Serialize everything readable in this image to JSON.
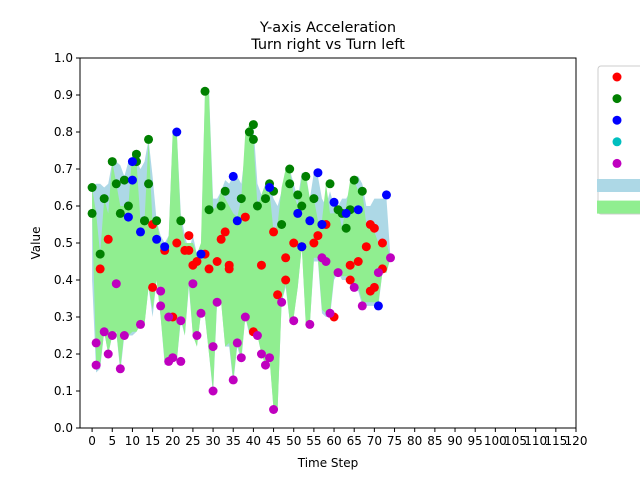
{
  "chart_data": {
    "type": "scatter",
    "title": "Y-axis Acceleration",
    "subtitle": "Turn right vs Turn left",
    "xlabel": "Time Step",
    "ylabel": "Value",
    "xlim": [
      -3,
      120
    ],
    "ylim": [
      0.0,
      1.0
    ],
    "xticks": [
      "0",
      "5",
      "10",
      "15",
      "20",
      "25",
      "30",
      "35",
      "40",
      "45",
      "50",
      "55",
      "60",
      "65",
      "70",
      "75",
      "80",
      "85",
      "90",
      "95",
      "100",
      "105",
      "110",
      "115",
      "120"
    ],
    "yticks": [
      "0.0",
      "0.1",
      "0.2",
      "0.3",
      "0.4",
      "0.5",
      "0.6",
      "0.7",
      "0.8",
      "0.9",
      "1.0"
    ],
    "grid": false,
    "legend_placement": "right",
    "legend_entries": [
      {
        "kind": "marker",
        "color": "#ff0000",
        "label": ""
      },
      {
        "kind": "marker",
        "color": "#008000",
        "label": ""
      },
      {
        "kind": "marker",
        "color": "#0000ff",
        "label": ""
      },
      {
        "kind": "marker",
        "color": "#00bfbf",
        "label": ""
      },
      {
        "kind": "marker",
        "color": "#bf00bf",
        "label": ""
      },
      {
        "kind": "patch",
        "color": "#add8e6",
        "label": ""
      },
      {
        "kind": "patch",
        "color": "#90ee90",
        "label": ""
      }
    ],
    "bands": [
      {
        "color": "#add8e6",
        "x": [
          0,
          1,
          2,
          3,
          4,
          5,
          6,
          7,
          8,
          9,
          10,
          11,
          12,
          13,
          14,
          15,
          16,
          17,
          18,
          19,
          20,
          21,
          22,
          23,
          24,
          25,
          26,
          27,
          28,
          29,
          30,
          31,
          32,
          33,
          34,
          35,
          36,
          37,
          38,
          39,
          40,
          41,
          42,
          43,
          44,
          45,
          46,
          47,
          48,
          49,
          50,
          51,
          52,
          53,
          54,
          55,
          56,
          57,
          58,
          59,
          60,
          61,
          62,
          63,
          64,
          65,
          66,
          67,
          68,
          69,
          70,
          71,
          72,
          73,
          74
        ],
        "upper": [
          0.65,
          0.66,
          0.66,
          0.65,
          0.66,
          0.72,
          0.72,
          0.71,
          0.68,
          0.72,
          0.72,
          0.72,
          0.7,
          0.72,
          0.78,
          0.68,
          0.56,
          0.52,
          0.5,
          0.52,
          0.8,
          0.8,
          0.58,
          0.52,
          0.48,
          0.52,
          0.47,
          0.48,
          0.91,
          0.91,
          0.62,
          0.62,
          0.64,
          0.67,
          0.66,
          0.68,
          0.68,
          0.66,
          0.75,
          0.82,
          0.82,
          0.66,
          0.63,
          0.66,
          0.66,
          0.62,
          0.6,
          0.64,
          0.7,
          0.7,
          0.66,
          0.62,
          0.69,
          0.69,
          0.62,
          0.69,
          0.68,
          0.62,
          0.6,
          0.64,
          0.6,
          0.6,
          0.62,
          0.62,
          0.64,
          0.68,
          0.68,
          0.66,
          0.6,
          0.6,
          0.62,
          0.62,
          0.62,
          0.62,
          0.46
        ],
        "lower": [
          0.4,
          0.15,
          0.16,
          0.26,
          0.2,
          0.25,
          0.26,
          0.15,
          0.25,
          0.25,
          0.25,
          0.26,
          0.28,
          0.28,
          0.38,
          0.3,
          0.4,
          0.3,
          0.17,
          0.18,
          0.19,
          0.18,
          0.29,
          0.25,
          0.38,
          0.25,
          0.22,
          0.31,
          0.3,
          0.2,
          0.09,
          0.34,
          0.34,
          0.22,
          0.22,
          0.12,
          0.22,
          0.18,
          0.3,
          0.25,
          0.26,
          0.25,
          0.2,
          0.17,
          0.19,
          0.05,
          0.05,
          0.34,
          0.38,
          0.29,
          0.3,
          0.38,
          0.49,
          0.28,
          0.28,
          0.45,
          0.45,
          0.31,
          0.3,
          0.3,
          0.4,
          0.42,
          0.4,
          0.4,
          0.4,
          0.37,
          0.37,
          0.33,
          0.33,
          0.33,
          0.33,
          0.33,
          0.42,
          0.42,
          0.46
        ]
      },
      {
        "color": "#90ee90",
        "x": [
          0,
          1,
          2,
          3,
          4,
          5,
          6,
          7,
          8,
          9,
          10,
          11,
          12,
          13,
          14,
          15,
          16,
          17,
          18,
          19,
          20,
          21,
          22,
          23,
          24,
          25,
          26,
          27,
          28,
          29,
          30,
          31,
          32,
          33,
          34,
          35,
          36,
          37,
          38,
          39,
          40,
          41,
          42,
          43,
          44,
          45,
          46,
          47,
          48,
          49,
          50,
          51,
          52,
          53,
          54,
          55,
          56,
          57,
          58,
          59,
          60,
          61,
          62,
          63,
          64,
          65,
          66,
          67,
          68,
          69,
          70,
          71,
          72,
          73,
          74
        ],
        "upper": [
          0.65,
          0.58,
          0.47,
          0.62,
          0.58,
          0.72,
          0.66,
          0.6,
          0.6,
          0.6,
          0.75,
          0.72,
          0.56,
          0.56,
          0.78,
          0.55,
          0.56,
          0.5,
          0.48,
          0.52,
          0.8,
          0.8,
          0.56,
          0.5,
          0.5,
          0.5,
          0.47,
          0.5,
          0.91,
          0.9,
          0.59,
          0.6,
          0.64,
          0.62,
          0.6,
          0.58,
          0.57,
          0.62,
          0.8,
          0.82,
          0.78,
          0.6,
          0.63,
          0.66,
          0.64,
          0.53,
          0.55,
          0.65,
          0.7,
          0.7,
          0.63,
          0.6,
          0.68,
          0.68,
          0.62,
          0.62,
          0.56,
          0.56,
          0.66,
          0.58,
          0.58,
          0.59,
          0.54,
          0.6,
          0.67,
          0.67,
          0.64,
          0.64,
          0.55,
          0.54,
          0.53,
          0.5,
          0.5,
          0.5,
          0.46
        ],
        "lower": [
          0.58,
          0.18,
          0.17,
          0.26,
          0.2,
          0.25,
          0.26,
          0.16,
          0.26,
          0.25,
          0.26,
          0.26,
          0.28,
          0.28,
          0.38,
          0.32,
          0.4,
          0.3,
          0.18,
          0.18,
          0.19,
          0.18,
          0.3,
          0.25,
          0.39,
          0.25,
          0.22,
          0.31,
          0.3,
          0.2,
          0.1,
          0.35,
          0.34,
          0.22,
          0.23,
          0.13,
          0.23,
          0.19,
          0.3,
          0.26,
          0.26,
          0.25,
          0.2,
          0.17,
          0.19,
          0.05,
          0.05,
          0.34,
          0.39,
          0.29,
          0.3,
          0.38,
          0.49,
          0.28,
          0.28,
          0.46,
          0.46,
          0.32,
          0.31,
          0.31,
          0.41,
          0.42,
          0.41,
          0.41,
          0.41,
          0.38,
          0.38,
          0.34,
          0.34,
          0.34,
          0.34,
          0.34,
          0.42,
          0.42,
          0.46
        ]
      }
    ],
    "series": [
      {
        "color": "#ff0000",
        "points": [
          [
            2,
            0.43
          ],
          [
            4,
            0.51
          ],
          [
            15,
            0.55
          ],
          [
            15,
            0.38
          ],
          [
            18,
            0.48
          ],
          [
            20,
            0.3
          ],
          [
            21,
            0.5
          ],
          [
            23,
            0.48
          ],
          [
            24,
            0.52
          ],
          [
            24,
            0.48
          ],
          [
            25,
            0.44
          ],
          [
            26,
            0.45
          ],
          [
            28,
            0.47
          ],
          [
            29,
            0.43
          ],
          [
            31,
            0.45
          ],
          [
            32,
            0.51
          ],
          [
            33,
            0.53
          ],
          [
            34,
            0.43
          ],
          [
            34,
            0.44
          ],
          [
            38,
            0.57
          ],
          [
            40,
            0.26
          ],
          [
            42,
            0.44
          ],
          [
            45,
            0.53
          ],
          [
            46,
            0.36
          ],
          [
            48,
            0.46
          ],
          [
            48,
            0.4
          ],
          [
            50,
            0.5
          ],
          [
            52,
            0.49
          ],
          [
            55,
            0.5
          ],
          [
            56,
            0.52
          ],
          [
            58,
            0.55
          ],
          [
            60,
            0.3
          ],
          [
            64,
            0.44
          ],
          [
            64,
            0.4
          ],
          [
            66,
            0.45
          ],
          [
            68,
            0.49
          ],
          [
            69,
            0.55
          ],
          [
            69,
            0.37
          ],
          [
            70,
            0.54
          ],
          [
            70,
            0.38
          ],
          [
            72,
            0.43
          ],
          [
            72,
            0.5
          ]
        ]
      },
      {
        "color": "#008000",
        "points": [
          [
            0,
            0.65
          ],
          [
            0,
            0.58
          ],
          [
            2,
            0.47
          ],
          [
            3,
            0.62
          ],
          [
            5,
            0.72
          ],
          [
            6,
            0.66
          ],
          [
            7,
            0.58
          ],
          [
            8,
            0.67
          ],
          [
            9,
            0.6
          ],
          [
            11,
            0.74
          ],
          [
            11,
            0.72
          ],
          [
            13,
            0.56
          ],
          [
            13,
            0.56
          ],
          [
            14,
            0.66
          ],
          [
            14,
            0.78
          ],
          [
            16,
            0.56
          ],
          [
            22,
            0.56
          ],
          [
            28,
            0.91
          ],
          [
            29,
            0.59
          ],
          [
            32,
            0.6
          ],
          [
            33,
            0.64
          ],
          [
            37,
            0.62
          ],
          [
            39,
            0.8
          ],
          [
            40,
            0.82
          ],
          [
            40,
            0.78
          ],
          [
            41,
            0.6
          ],
          [
            43,
            0.62
          ],
          [
            44,
            0.66
          ],
          [
            45,
            0.64
          ],
          [
            47,
            0.55
          ],
          [
            49,
            0.7
          ],
          [
            49,
            0.66
          ],
          [
            51,
            0.63
          ],
          [
            52,
            0.6
          ],
          [
            53,
            0.68
          ],
          [
            55,
            0.62
          ],
          [
            57,
            0.55
          ],
          [
            59,
            0.66
          ],
          [
            61,
            0.59
          ],
          [
            62,
            0.58
          ],
          [
            63,
            0.54
          ],
          [
            64,
            0.59
          ],
          [
            65,
            0.67
          ],
          [
            67,
            0.64
          ]
        ]
      },
      {
        "color": "#0000ff",
        "points": [
          [
            9,
            0.57
          ],
          [
            10,
            0.72
          ],
          [
            10,
            0.67
          ],
          [
            12,
            0.53
          ],
          [
            16,
            0.51
          ],
          [
            18,
            0.49
          ],
          [
            21,
            0.8
          ],
          [
            27,
            0.47
          ],
          [
            35,
            0.68
          ],
          [
            36,
            0.56
          ],
          [
            44,
            0.65
          ],
          [
            51,
            0.58
          ],
          [
            52,
            0.49
          ],
          [
            54,
            0.56
          ],
          [
            56,
            0.69
          ],
          [
            57,
            0.55
          ],
          [
            60,
            0.61
          ],
          [
            63,
            0.58
          ],
          [
            66,
            0.59
          ],
          [
            71,
            0.33
          ],
          [
            73,
            0.63
          ]
        ]
      },
      {
        "color": "#00bfbf",
        "points": []
      },
      {
        "color": "#bf00bf",
        "points": [
          [
            1,
            0.17
          ],
          [
            1,
            0.23
          ],
          [
            3,
            0.26
          ],
          [
            4,
            0.2
          ],
          [
            5,
            0.25
          ],
          [
            6,
            0.39
          ],
          [
            7,
            0.16
          ],
          [
            8,
            0.25
          ],
          [
            12,
            0.28
          ],
          [
            17,
            0.33
          ],
          [
            17,
            0.37
          ],
          [
            19,
            0.3
          ],
          [
            19,
            0.18
          ],
          [
            20,
            0.19
          ],
          [
            22,
            0.18
          ],
          [
            22,
            0.29
          ],
          [
            25,
            0.39
          ],
          [
            26,
            0.25
          ],
          [
            27,
            0.31
          ],
          [
            30,
            0.22
          ],
          [
            30,
            0.1
          ],
          [
            31,
            0.34
          ],
          [
            35,
            0.13
          ],
          [
            36,
            0.23
          ],
          [
            37,
            0.19
          ],
          [
            38,
            0.3
          ],
          [
            41,
            0.25
          ],
          [
            42,
            0.2
          ],
          [
            43,
            0.17
          ],
          [
            44,
            0.19
          ],
          [
            45,
            0.05
          ],
          [
            47,
            0.34
          ],
          [
            50,
            0.29
          ],
          [
            54,
            0.28
          ],
          [
            57,
            0.46
          ],
          [
            58,
            0.45
          ],
          [
            59,
            0.31
          ],
          [
            61,
            0.42
          ],
          [
            65,
            0.38
          ],
          [
            67,
            0.33
          ],
          [
            71,
            0.42
          ],
          [
            74,
            0.46
          ]
        ]
      }
    ]
  }
}
